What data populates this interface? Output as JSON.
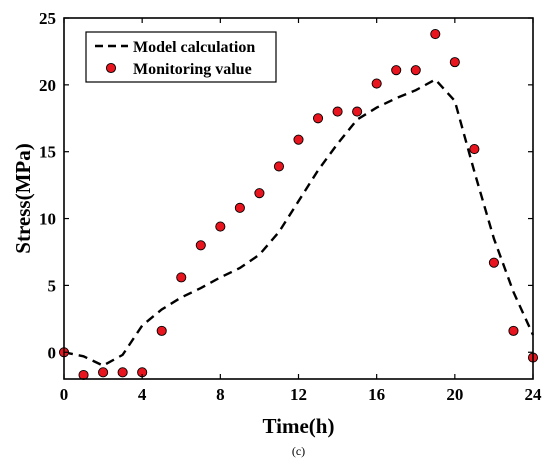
{
  "chart_data": {
    "type": "line+scatter",
    "xlabel": "Time(h)",
    "ylabel": "Stress(MPa)",
    "caption": "(c)",
    "xlim": [
      0,
      24
    ],
    "ylim": [
      -2,
      25
    ],
    "xticks": [
      0,
      4,
      8,
      12,
      16,
      20,
      24
    ],
    "yticks": [
      0,
      5,
      10,
      15,
      20,
      25
    ],
    "grid": false,
    "legend_position": "top-left",
    "series": [
      {
        "name": "Model calculation",
        "style": "dashed-line",
        "color": "#000000",
        "x": [
          0,
          1,
          2,
          3,
          4,
          5,
          6,
          7,
          8,
          9,
          10,
          11,
          12,
          13,
          14,
          15,
          16,
          17,
          18,
          19,
          20,
          21,
          22,
          23,
          24
        ],
        "y": [
          0,
          -0.3,
          -1.0,
          -0.2,
          2.0,
          3.2,
          4.1,
          4.8,
          5.6,
          6.3,
          7.3,
          9.0,
          11.3,
          13.6,
          15.6,
          17.4,
          18.3,
          19.0,
          19.6,
          20.4,
          18.8,
          13.5,
          8.5,
          4.5,
          1.3
        ]
      },
      {
        "name": "Monitoring value",
        "style": "marker",
        "color": "#e8141e",
        "x": [
          0,
          1,
          2,
          3,
          4,
          5,
          6,
          7,
          8,
          9,
          10,
          11,
          12,
          13,
          14,
          15,
          16,
          17,
          18,
          19,
          20,
          21,
          22,
          23,
          24
        ],
        "y": [
          0,
          -1.7,
          -1.5,
          -1.5,
          -1.5,
          1.6,
          5.6,
          8.0,
          9.4,
          10.8,
          11.9,
          13.9,
          15.9,
          17.5,
          18.0,
          18.0,
          20.1,
          21.1,
          21.1,
          23.8,
          21.7,
          15.2,
          6.7,
          1.6,
          -0.4
        ]
      }
    ]
  }
}
